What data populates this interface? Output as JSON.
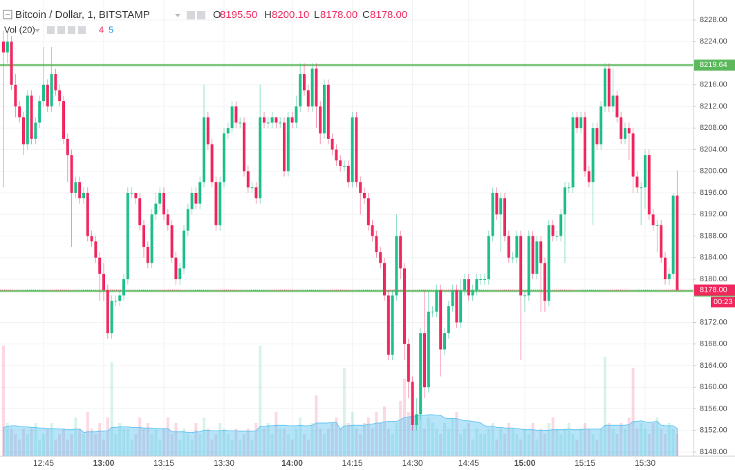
{
  "chart_data": {
    "type": "candlestick",
    "title": "Bitcoin / Dollar, 1, BITSTAMP",
    "ohlc_legend": {
      "labels": [
        "O",
        "H",
        "L",
        "C"
      ],
      "values": [
        "8195.50",
        "8200.10",
        "8178.00",
        "8178.00"
      ]
    },
    "volume_title": "Vol (20)",
    "volume_legend_values": [
      4,
      5
    ],
    "up_color": "#1fbf8c",
    "down_color": "#f0285e",
    "volume_ma_color": "#5ec3f2",
    "grid": true,
    "ylim": [
      8147.23,
      8231.71
    ],
    "vlim": [
      0,
      21
    ],
    "yticks": [
      {
        "value": 8148,
        "label": "8148.00"
      },
      {
        "value": 8152,
        "label": "8152.00"
      },
      {
        "value": 8156,
        "label": "8156.00"
      },
      {
        "value": 8160,
        "label": "8160.00"
      },
      {
        "value": 8164,
        "label": "8164.00"
      },
      {
        "value": 8168,
        "label": "8168.00"
      },
      {
        "value": 8172,
        "label": "8172.00"
      },
      {
        "value": 8180,
        "label": "8180.00"
      },
      {
        "value": 8184,
        "label": "8184.00"
      },
      {
        "value": 8188,
        "label": "8188.00"
      },
      {
        "value": 8192,
        "label": "8192.00"
      },
      {
        "value": 8196,
        "label": "8196.00"
      },
      {
        "value": 8200,
        "label": "8200.00"
      },
      {
        "value": 8204,
        "label": "8204.00"
      },
      {
        "value": 8208,
        "label": "8208.00"
      },
      {
        "value": 8212,
        "label": "8212.00"
      },
      {
        "value": 8216,
        "label": "8216.00"
      },
      {
        "value": 8224,
        "label": "8224.00"
      },
      {
        "value": 8228,
        "label": "8228.00"
      }
    ],
    "levels": [
      {
        "value": 8219.64,
        "color": "#5cb85c"
      },
      {
        "value": 8177.82,
        "color": "#5cb85c"
      }
    ],
    "last_price": {
      "value": 8178,
      "label": "8178.00",
      "color": "#f0285e"
    },
    "countdown": "00:23",
    "categories": [
      null,
      null,
      null,
      null,
      null,
      null,
      null,
      null,
      null,
      null,
      "12:45",
      null,
      null,
      null,
      null,
      null,
      null,
      null,
      null,
      null,
      null,
      null,
      null,
      null,
      null,
      "13:00",
      null,
      null,
      null,
      null,
      null,
      null,
      null,
      null,
      null,
      null,
      null,
      null,
      null,
      null,
      "13:15",
      null,
      null,
      null,
      null,
      null,
      null,
      null,
      null,
      null,
      null,
      null,
      null,
      null,
      null,
      "13:30",
      null,
      null,
      null,
      null,
      null,
      null,
      null,
      null,
      null,
      null,
      null,
      null,
      null,
      null,
      null,
      null,
      "14:00",
      null,
      null,
      null,
      null,
      null,
      null,
      null,
      null,
      null,
      null,
      null,
      null,
      null,
      null,
      "14:15",
      null,
      null,
      null,
      null,
      null,
      null,
      null,
      null,
      null,
      null,
      null,
      null,
      null,
      null,
      "14:30",
      null,
      null,
      null,
      null,
      null,
      null,
      null,
      null,
      null,
      null,
      null,
      null,
      null,
      "14:45",
      null,
      null,
      null,
      null,
      null,
      null,
      null,
      null,
      null,
      null,
      null,
      null,
      null,
      "15:00",
      null,
      null,
      null,
      null,
      null,
      null,
      null,
      null,
      null,
      null,
      null,
      null,
      null,
      null,
      "15:15",
      null,
      null,
      null,
      null,
      null,
      null,
      null,
      null,
      null,
      null,
      null,
      null,
      null,
      null,
      "15:30",
      null,
      null,
      null,
      null,
      null,
      null,
      null,
      null
    ],
    "open": [
      8224,
      8222,
      8224,
      8216,
      8212,
      8210,
      8205,
      8214,
      8206,
      8209,
      8213,
      8216,
      8212,
      8218,
      8215,
      8213,
      8206,
      8203,
      8196,
      8198,
      8195,
      8196,
      8188,
      8187,
      8184,
      8181,
      8178,
      8170,
      8176,
      8176,
      8177,
      8180,
      8196,
      8196,
      8195,
      8190,
      8186,
      8183,
      8192,
      8194,
      8196,
      8192,
      8190,
      8184,
      8180,
      8182,
      8189,
      8193,
      8196,
      8194,
      8198,
      8210,
      8205,
      8198,
      8190,
      8198,
      8207,
      8208,
      8212,
      8209,
      8209,
      8200,
      8197,
      8197,
      8195,
      8210,
      8209,
      8209,
      8210,
      8209,
      8209,
      8200,
      8210,
      8209,
      8212,
      8218,
      8215,
      8212,
      8219,
      8212,
      8207,
      8216,
      8206,
      8204,
      8202,
      8201,
      8201,
      8198,
      8210,
      8198,
      8196,
      8195,
      8190,
      8188,
      8185,
      8183,
      8177,
      8166,
      8177,
      8188,
      8182,
      8168,
      8161,
      8153,
      8155,
      8170,
      8160,
      8174,
      8174,
      8178,
      8167,
      8170,
      8175,
      8178,
      8172,
      8178,
      8180,
      8177,
      8178,
      8180,
      8180,
      8180,
      8188,
      8196,
      8192,
      8195,
      8188,
      8184,
      8184,
      8188,
      8177,
      8177,
      8188,
      8181,
      8187,
      8183,
      8176,
      8190,
      8188,
      8188,
      8192,
      8197,
      8197,
      8210,
      8208,
      8210,
      8200,
      8198,
      8208,
      8205,
      8212,
      8219,
      8212,
      8214,
      8210,
      8206,
      8208,
      8207,
      8199,
      8197,
      8197,
      8203,
      8192,
      8190,
      8190,
      8184,
      8180,
      8181,
      8195.5
    ],
    "high": [
      8226,
      8226,
      8225,
      8218,
      8213,
      8211,
      8215,
      8215,
      8210,
      8214,
      8223,
      8217,
      8223,
      8219,
      8216,
      8214,
      8207,
      8204,
      8199,
      8199,
      8197,
      8197,
      8189,
      8188,
      8185,
      8183,
      8179,
      8177,
      8177,
      8178,
      8181,
      8197,
      8197,
      8196,
      8196,
      8191,
      8187,
      8193,
      8196,
      8197,
      8197,
      8193,
      8191,
      8185,
      8183,
      8190,
      8194,
      8197,
      8197,
      8199,
      8216,
      8211,
      8206,
      8199,
      8199,
      8208,
      8209,
      8213,
      8213,
      8210,
      8210,
      8201,
      8198,
      8198,
      8216,
      8211,
      8210,
      8211,
      8210,
      8210,
      8210,
      8211,
      8211,
      8214,
      8220,
      8220,
      8216,
      8220,
      8220,
      8213,
      8217,
      8217,
      8207,
      8205,
      8203,
      8202,
      8202,
      8211,
      8211,
      8199,
      8197,
      8196,
      8191,
      8189,
      8186,
      8184,
      8178,
      8178,
      8192,
      8189,
      8183,
      8169,
      8162,
      8158,
      8171,
      8178,
      8178,
      8175,
      8179,
      8179,
      8171,
      8176,
      8179,
      8179,
      8180,
      8181,
      8181,
      8179,
      8181,
      8181,
      8181,
      8189,
      8197,
      8197,
      8196,
      8196,
      8189,
      8185,
      8189,
      8189,
      8178,
      8189,
      8189,
      8188,
      8188,
      8184,
      8191,
      8191,
      8189,
      8193,
      8198,
      8198,
      8211,
      8211,
      8211,
      8211,
      8201,
      8209,
      8209,
      8213,
      8220,
      8220,
      8219,
      8215,
      8211,
      8209,
      8209,
      8208,
      8200,
      8198,
      8204,
      8204,
      8193,
      8191,
      8191,
      8185,
      8182,
      8196,
      8200.1
    ],
    "low": [
      8197,
      8220,
      8215,
      8210,
      8209,
      8203,
      8204,
      8205,
      8205,
      8208,
      8212,
      8211,
      8211,
      8214,
      8212,
      8205,
      8198,
      8186,
      8195,
      8194,
      8194,
      8187,
      8186,
      8183,
      8176,
      8176,
      8169,
      8169,
      8175,
      8175,
      8176,
      8179,
      8195,
      8194,
      8189,
      8184,
      8182,
      8182,
      8191,
      8193,
      8191,
      8189,
      8183,
      8179,
      8179,
      8181,
      8188,
      8192,
      8193,
      8193,
      8197,
      8204,
      8197,
      8189,
      8189,
      8197,
      8206,
      8207,
      8208,
      8208,
      8199,
      8196,
      8196,
      8194,
      8194,
      8208,
      8208,
      8208,
      8208,
      8208,
      8199,
      8199,
      8208,
      8208,
      8211,
      8214,
      8211,
      8211,
      8208,
      8205,
      8206,
      8205,
      8203,
      8201,
      8200,
      8200,
      8197,
      8197,
      8197,
      8192,
      8194,
      8189,
      8187,
      8184,
      8182,
      8176,
      8165,
      8165,
      8176,
      8180,
      8165,
      8158,
      8152,
      8152,
      8154,
      8158,
      8159,
      8173,
      8173,
      8162,
      8166,
      8169,
      8174,
      8171,
      8171,
      8177,
      8176,
      8176,
      8177,
      8179,
      8179,
      8179,
      8187,
      8191,
      8185,
      8187,
      8183,
      8183,
      8183,
      8165,
      8174,
      8176,
      8180,
      8180,
      8174,
      8174,
      8175,
      8187,
      8187,
      8187,
      8183,
      8196,
      8196,
      8207,
      8207,
      8199,
      8197,
      8190,
      8204,
      8204,
      8211,
      8211,
      8211,
      8209,
      8205,
      8205,
      8202,
      8196,
      8196,
      8190,
      8193,
      8191,
      8189,
      8185,
      8183,
      8179,
      8179,
      8180,
      8178
    ],
    "close": [
      8222,
      8224,
      8216,
      8212,
      8210,
      8205,
      8214,
      8206,
      8209,
      8213,
      8216,
      8212,
      8218,
      8215,
      8213,
      8206,
      8203,
      8196,
      8198,
      8195,
      8196,
      8188,
      8187,
      8184,
      8181,
      8178,
      8170,
      8176,
      8176,
      8177,
      8180,
      8196,
      8196,
      8195,
      8190,
      8186,
      8183,
      8192,
      8194,
      8196,
      8192,
      8190,
      8184,
      8180,
      8182,
      8189,
      8193,
      8196,
      8194,
      8198,
      8210,
      8205,
      8198,
      8190,
      8198,
      8207,
      8208,
      8212,
      8209,
      8209,
      8200,
      8197,
      8197,
      8195,
      8210,
      8209,
      8209,
      8210,
      8209,
      8209,
      8200,
      8210,
      8209,
      8212,
      8218,
      8215,
      8212,
      8219,
      8212,
      8207,
      8216,
      8206,
      8204,
      8202,
      8201,
      8201,
      8198,
      8210,
      8198,
      8196,
      8195,
      8190,
      8188,
      8185,
      8183,
      8177,
      8166,
      8177,
      8188,
      8182,
      8168,
      8161,
      8153,
      8155,
      8170,
      8160,
      8174,
      8174,
      8178,
      8167,
      8170,
      8175,
      8178,
      8172,
      8178,
      8180,
      8177,
      8178,
      8180,
      8180,
      8180,
      8188,
      8196,
      8192,
      8195,
      8188,
      8184,
      8184,
      8188,
      8177,
      8177,
      8188,
      8181,
      8187,
      8183,
      8176,
      8190,
      8188,
      8188,
      8192,
      8197,
      8197,
      8210,
      8208,
      8210,
      8200,
      8198,
      8208,
      8205,
      8212,
      8219,
      8212,
      8214,
      8210,
      8206,
      8208,
      8207,
      8199,
      8197,
      8197,
      8203,
      8192,
      8190,
      8190,
      8184,
      8180,
      8181,
      8195.5,
      8178
    ],
    "volume": [
      20,
      6,
      5,
      4,
      3,
      5,
      4,
      5,
      6,
      3,
      4,
      5,
      6,
      3,
      4,
      5,
      3,
      4,
      7,
      5,
      4,
      8,
      5,
      4,
      6,
      3,
      7,
      17,
      4,
      6,
      5,
      5,
      3,
      4,
      7,
      5,
      6,
      4,
      5,
      3,
      5,
      7,
      4,
      6,
      3,
      5,
      4,
      3,
      6,
      4,
      7,
      5,
      3,
      4,
      6,
      5,
      4,
      3,
      5,
      3,
      4,
      5,
      3,
      6,
      20,
      5,
      6,
      4,
      8,
      5,
      5,
      4,
      3,
      5,
      7,
      4,
      3,
      6,
      11,
      5,
      4,
      5,
      6,
      7,
      5,
      16,
      6,
      8,
      5,
      4,
      6,
      7,
      5,
      8,
      6,
      9,
      5,
      4,
      6,
      10,
      14,
      8,
      7,
      6,
      9,
      5,
      7,
      6,
      5,
      4,
      6,
      5,
      7,
      8,
      4,
      5,
      6,
      3,
      5,
      4,
      4,
      5,
      6,
      3,
      5,
      4,
      6,
      5,
      4,
      3,
      5,
      4,
      6,
      3,
      5,
      4,
      6,
      7,
      5,
      4,
      5,
      6,
      4,
      3,
      5,
      6,
      5,
      4,
      3,
      5,
      18,
      6,
      5,
      4,
      6,
      5,
      7,
      16,
      5,
      6,
      5,
      4,
      6,
      7,
      5,
      4,
      6,
      5,
      4
    ],
    "volume_ma": [
      5.2,
      5.4,
      5.5,
      5.5,
      5.4,
      5.3,
      5.3,
      5.2,
      5.2,
      5.1,
      5.1,
      5.0,
      5.0,
      5.0,
      4.9,
      4.9,
      4.8,
      4.8,
      4.9,
      4.9,
      4.3,
      4.4,
      4.4,
      4.4,
      4.5,
      4.5,
      4.6,
      5.2,
      5.2,
      5.3,
      5.3,
      5.3,
      5.2,
      5.2,
      5.2,
      5.1,
      5.1,
      5.1,
      5.0,
      5.0,
      5.0,
      5.0,
      4.4,
      4.4,
      4.4,
      4.4,
      4.3,
      4.3,
      4.4,
      4.4,
      4.7,
      4.7,
      4.6,
      4.6,
      4.6,
      4.7,
      4.6,
      4.6,
      4.6,
      4.5,
      4.5,
      4.5,
      4.5,
      4.6,
      5.4,
      5.4,
      5.5,
      5.5,
      5.6,
      5.6,
      5.6,
      5.5,
      5.5,
      5.5,
      5.6,
      5.5,
      5.5,
      5.6,
      6.0,
      6.0,
      6.0,
      6.0,
      6.1,
      6.1,
      4.9,
      5.5,
      5.5,
      5.6,
      5.6,
      5.6,
      5.6,
      5.8,
      5.8,
      6.0,
      6.0,
      6.2,
      6.3,
      6.3,
      6.3,
      6.6,
      7.0,
      7.1,
      7.2,
      7.3,
      7.4,
      7.4,
      7.5,
      7.5,
      7.4,
      7.4,
      6.9,
      6.8,
      6.8,
      6.8,
      6.6,
      6.4,
      6.4,
      6.3,
      6.2,
      6.0,
      5.5,
      5.4,
      5.4,
      5.2,
      5.2,
      5.1,
      5.1,
      5.1,
      5.0,
      4.9,
      4.8,
      4.8,
      4.8,
      4.7,
      4.7,
      4.7,
      4.7,
      4.8,
      4.8,
      4.8,
      4.8,
      4.9,
      4.8,
      4.8,
      4.8,
      4.9,
      4.9,
      4.9,
      4.9,
      4.9,
      5.6,
      5.6,
      5.6,
      5.6,
      5.6,
      5.6,
      5.7,
      6.3,
      6.3,
      6.4,
      6.2,
      6.1,
      6.2,
      6.3,
      5.6,
      5.5,
      5.5,
      5.5,
      5
    ]
  }
}
